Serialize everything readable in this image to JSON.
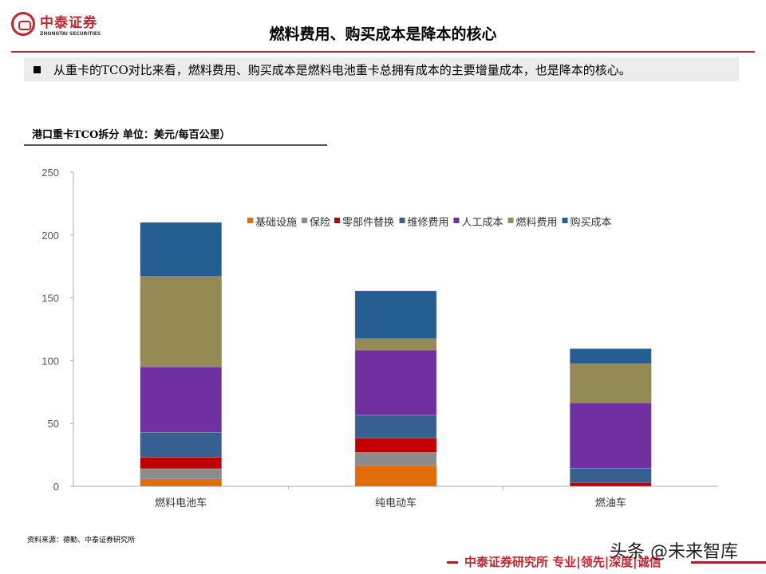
{
  "header": {
    "logo_cn": "中泰证券",
    "logo_en": "ZHONGTAI SECURITIES",
    "title": "燃料费用、购买成本是降本的核心"
  },
  "bullet": "从重卡的TCO对比来看，燃料费用、购买成本是燃料电池重卡总拥有成本的主要增量成本，也是降本的核心。",
  "chart_data": {
    "type": "bar",
    "stacked": true,
    "title": "港口重卡TCO拆分 单位：美元/每百公里）",
    "categories": [
      "燃料电池车",
      "纯电动车",
      "燃油车"
    ],
    "ylim": [
      0,
      250
    ],
    "yticks": [
      0,
      50,
      100,
      150,
      200,
      250
    ],
    "legend_position": "top-right",
    "series": [
      {
        "name": "基础设施",
        "color": "#e36c0a",
        "values": [
          6,
          16.5,
          0
        ]
      },
      {
        "name": "保险",
        "color": "#8c8c8c",
        "values": [
          8,
          10.5,
          0
        ]
      },
      {
        "name": "零部件替换",
        "color": "#c00000",
        "values": [
          9,
          11.5,
          3
        ]
      },
      {
        "name": "维修费用",
        "color": "#376092",
        "values": [
          20,
          18,
          11.5
        ]
      },
      {
        "name": "人工成本",
        "color": "#7030a0",
        "values": [
          52,
          52,
          52
        ]
      },
      {
        "name": "燃料费用",
        "color": "#948a54",
        "values": [
          72,
          9,
          31
        ]
      },
      {
        "name": "购买成本",
        "color": "#255e91",
        "values": [
          43,
          38,
          12
        ]
      }
    ]
  },
  "source": "资料来源：德勤、中泰证券研究所",
  "footer": {
    "text": "中泰证券研究所 专业|领先|深度|诚信",
    "watermark": "头条 @未来智库"
  }
}
